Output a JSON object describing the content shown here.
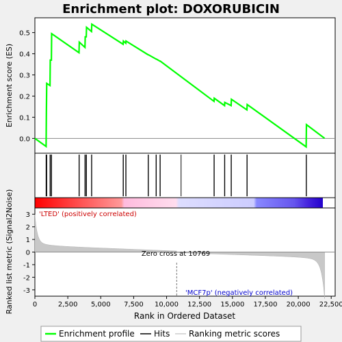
{
  "chart_data": {
    "type": "line",
    "title": "Enrichment plot: DOXORUBICIN",
    "top_panel": {
      "ylabel": "Enrichment score (ES)",
      "ylim": [
        -0.07,
        0.57
      ],
      "yticks": [
        "0.0",
        "0.1",
        "0.2",
        "0.3",
        "0.4",
        "0.5"
      ],
      "ytick_values": [
        0.0,
        0.1,
        0.2,
        0.3,
        0.4,
        0.5
      ],
      "series": [
        {
          "name": "Enrichment profile",
          "color": "#00ff00",
          "points": [
            [
              0,
              0.0
            ],
            [
              850,
              -0.038
            ],
            [
              870,
              0.12
            ],
            [
              900,
              0.26
            ],
            [
              1150,
              0.25
            ],
            [
              1170,
              0.37
            ],
            [
              1250,
              0.37
            ],
            [
              1270,
              0.495
            ],
            [
              3350,
              0.405
            ],
            [
              3370,
              0.455
            ],
            [
              3800,
              0.43
            ],
            [
              3820,
              0.48
            ],
            [
              3900,
              0.48
            ],
            [
              3920,
              0.525
            ],
            [
              4300,
              0.505
            ],
            [
              4320,
              0.54
            ],
            [
              6700,
              0.445
            ],
            [
              6720,
              0.46
            ],
            [
              6900,
              0.45
            ],
            [
              6920,
              0.46
            ],
            [
              8600,
              0.395
            ],
            [
              8620,
              0.395
            ],
            [
              9200,
              0.375
            ],
            [
              9220,
              0.375
            ],
            [
              9500,
              0.365
            ],
            [
              9520,
              0.365
            ],
            [
              13600,
              0.175
            ],
            [
              13620,
              0.19
            ],
            [
              14400,
              0.155
            ],
            [
              14420,
              0.17
            ],
            [
              14900,
              0.155
            ],
            [
              14920,
              0.185
            ],
            [
              16100,
              0.135
            ],
            [
              16120,
              0.16
            ],
            [
              20600,
              -0.04
            ],
            [
              20620,
              0.065
            ],
            [
              22000,
              0.0
            ]
          ]
        }
      ]
    },
    "hits": {
      "name": "Hits",
      "positions": [
        850,
        870,
        900,
        1150,
        1170,
        1250,
        1270,
        3350,
        3370,
        3800,
        3820,
        3900,
        3920,
        4300,
        4320,
        6700,
        6720,
        6900,
        6920,
        8600,
        8620,
        9200,
        9220,
        9500,
        9520,
        11100,
        13600,
        13620,
        14400,
        14420,
        14900,
        14920,
        16100,
        16120,
        20600,
        20620
      ]
    },
    "bottom_panel": {
      "ylabel": "Ranked list metric (Signal2Noise)",
      "ylim": [
        -3.5,
        3.5
      ],
      "yticks": [
        "-3",
        "-2",
        "-1",
        "0",
        "1",
        "2",
        "3"
      ],
      "ytick_values": [
        -3,
        -2,
        -1,
        0,
        1,
        2,
        3
      ],
      "zero_cross": 10769,
      "series_name": "Ranking metric scores",
      "annotations": {
        "positive": "'LTED' (positively correlated)",
        "negative": "'MCF7p' (negatively correlated)",
        "zero_cross": "Zero cross at 10769"
      }
    },
    "x": {
      "label": "Rank in Ordered Dataset",
      "xlim": [
        0,
        22800
      ],
      "ticks": [
        "0",
        "2,500",
        "5,000",
        "7,500",
        "10,000",
        "12,500",
        "15,000",
        "17,500",
        "20,000",
        "22,500"
      ],
      "tick_values": [
        0,
        2500,
        5000,
        7500,
        10000,
        12500,
        15000,
        17500,
        20000,
        22500
      ],
      "n_genes": 22000
    },
    "legend": {
      "placement": "bottom",
      "entries": [
        "Enrichment profile",
        "Hits",
        "Ranking metric scores"
      ]
    }
  }
}
